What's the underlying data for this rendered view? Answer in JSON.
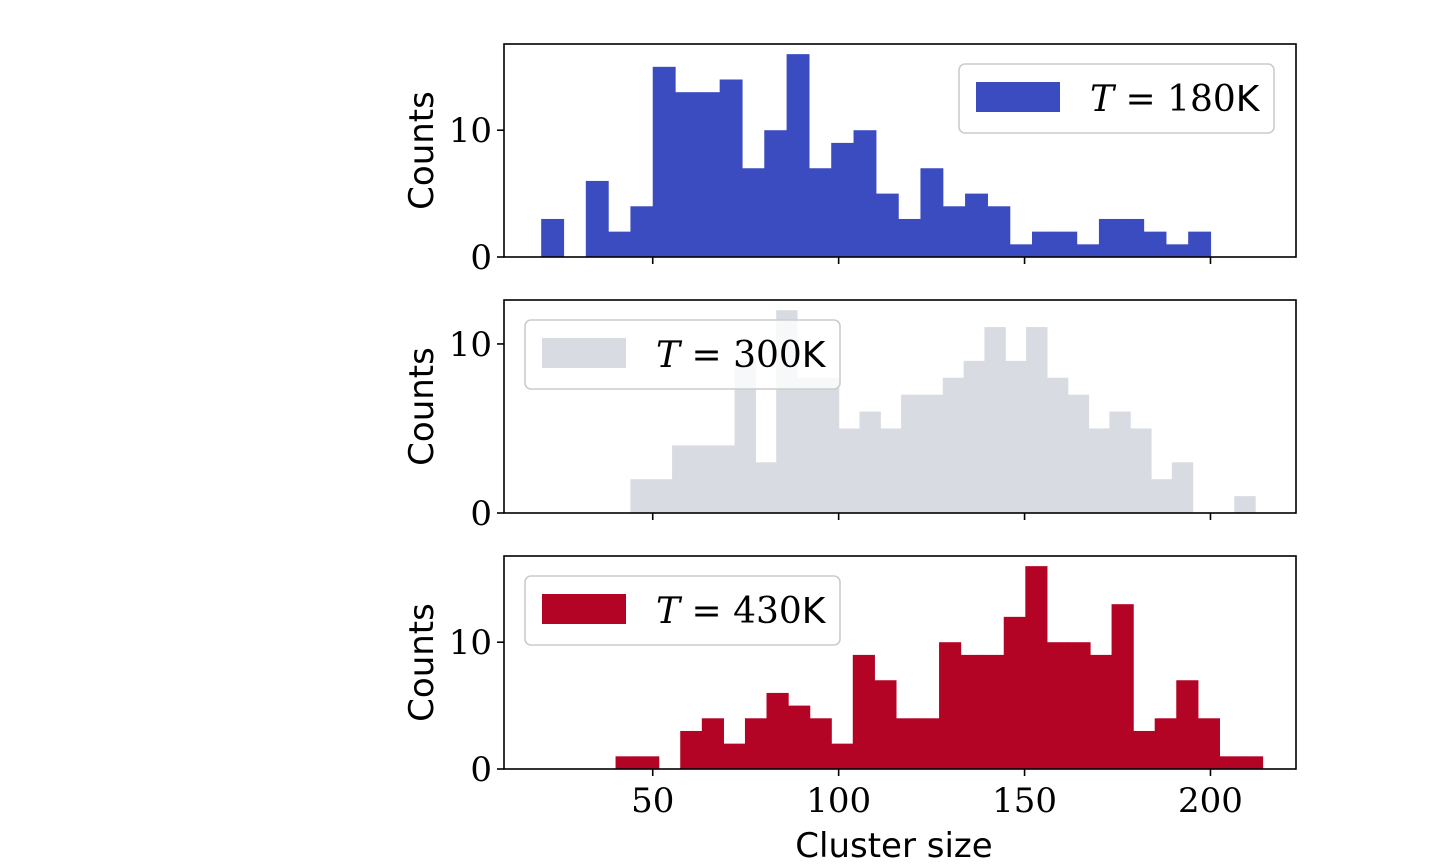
{
  "chart_data": [
    {
      "type": "bar",
      "ylabel": "Counts",
      "xlabel": "",
      "legend": {
        "label": "T = 180K",
        "var": "T",
        "eq": " = ",
        "value": "180",
        "unit": "K",
        "placement": "top-right"
      },
      "color": "#3b4cc0",
      "bin_width": 6,
      "bins_start": [
        20,
        26,
        32,
        38,
        44,
        50,
        56,
        62,
        68,
        74,
        80,
        86,
        92,
        98,
        104,
        110,
        116,
        122,
        128,
        134,
        140,
        146,
        152,
        158,
        164,
        170,
        176,
        182,
        188,
        194
      ],
      "values": [
        3,
        0,
        6,
        2,
        4,
        15,
        13,
        13,
        14,
        7,
        10,
        16,
        7,
        9,
        10,
        5,
        3,
        7,
        4,
        5,
        4,
        1,
        2,
        2,
        1,
        3,
        3,
        2,
        1,
        2
      ],
      "ylim": [
        0,
        16.8
      ],
      "yticks": [
        0,
        10
      ],
      "xlim": [
        10,
        223
      ],
      "xticks": [
        50,
        100,
        150,
        200
      ]
    },
    {
      "type": "bar",
      "ylabel": "Counts",
      "xlabel": "",
      "legend": {
        "label": "T = 300K",
        "var": "T",
        "eq": " = ",
        "value": "300",
        "unit": "K",
        "placement": "top-left"
      },
      "color": "#d8dce2",
      "bin_width": 5.6,
      "bins_start": [
        44,
        49.6,
        55.2,
        60.8,
        66.4,
        72,
        77.6,
        83.2,
        88.8,
        94.4,
        100,
        105.6,
        111.2,
        116.8,
        122.4,
        128,
        133.6,
        139.2,
        144.8,
        150.4,
        156,
        161.6,
        167.2,
        172.8,
        178.4,
        184,
        189.6,
        195.2,
        200.8,
        206.4
      ],
      "values": [
        2,
        2,
        4,
        4,
        4,
        9,
        3,
        12,
        8,
        8,
        5,
        6,
        5,
        7,
        7,
        8,
        9,
        11,
        9,
        11,
        8,
        7,
        5,
        6,
        5,
        2,
        3,
        0,
        0,
        1
      ],
      "ylim": [
        0,
        12.6
      ],
      "yticks": [
        0,
        10
      ],
      "xlim": [
        10,
        223
      ],
      "xticks": [
        50,
        100,
        150,
        200
      ]
    },
    {
      "type": "bar",
      "ylabel": "Counts",
      "xlabel": "Cluster size",
      "legend": {
        "label": "T = 430K",
        "var": "T",
        "eq": " = ",
        "value": "430",
        "unit": "K",
        "placement": "top-left"
      },
      "color": "#b40426",
      "bin_width": 5.8,
      "bins_start": [
        40,
        45.8,
        51.6,
        57.4,
        63.2,
        69,
        74.8,
        80.6,
        86.4,
        92.2,
        98,
        103.8,
        109.6,
        115.4,
        121.2,
        127,
        132.8,
        138.6,
        144.4,
        150.2,
        156,
        161.8,
        167.6,
        173.4,
        179.2,
        185,
        190.8,
        196.6,
        202.4,
        208.2
      ],
      "values": [
        1,
        1,
        0,
        3,
        4,
        2,
        4,
        6,
        5,
        4,
        2,
        9,
        7,
        4,
        4,
        10,
        9,
        9,
        12,
        16,
        10,
        10,
        9,
        13,
        3,
        4,
        7,
        4,
        1,
        1
      ],
      "ylim": [
        0,
        16.8
      ],
      "yticks": [
        0,
        10
      ],
      "xlim": [
        10,
        223
      ],
      "xticks": [
        50,
        100,
        150,
        200
      ]
    }
  ]
}
